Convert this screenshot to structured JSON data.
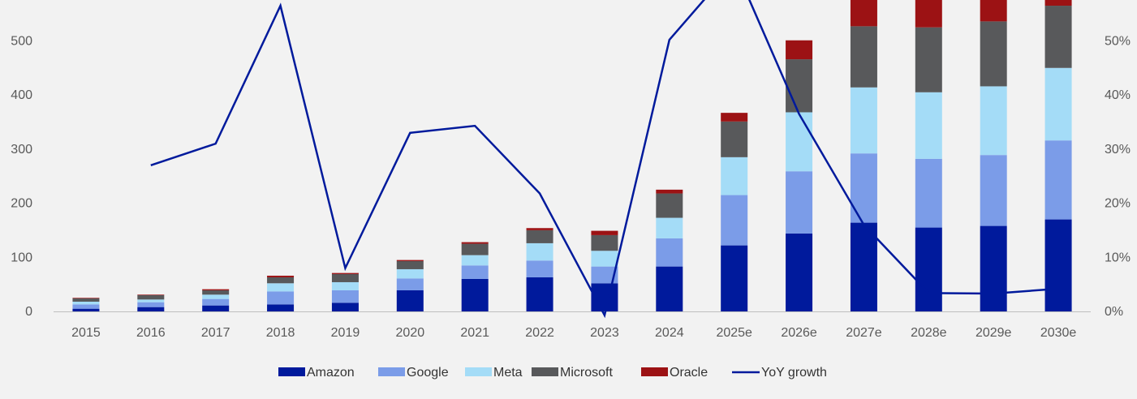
{
  "chart_data": {
    "type": "bar",
    "subtype": "stacked-bar-with-line",
    "categories": [
      "2015",
      "2016",
      "2017",
      "2018",
      "2019",
      "2020",
      "2021",
      "2022",
      "2023",
      "2024",
      "2025e",
      "2026e",
      "2027e",
      "2028e",
      "2029e",
      "2030e"
    ],
    "series": [
      {
        "name": "Amazon",
        "color": "#001a9c",
        "values": [
          5,
          8,
          11,
          13,
          16,
          39,
          60,
          63,
          52,
          83,
          122,
          144,
          164,
          155,
          158,
          170
        ]
      },
      {
        "name": "Google",
        "color": "#7b9ce8",
        "values": [
          8,
          9,
          12,
          24,
          23,
          22,
          25,
          31,
          31,
          52,
          93,
          115,
          128,
          127,
          131,
          146
        ]
      },
      {
        "name": "Meta",
        "color": "#a4dcf7",
        "values": [
          5,
          5,
          8,
          15,
          15,
          17,
          19,
          32,
          29,
          38,
          70,
          109,
          122,
          123,
          127,
          134
        ]
      },
      {
        "name": "Microsoft",
        "color": "#58595b",
        "values": [
          6,
          8,
          8,
          11,
          15,
          15,
          21,
          24,
          29,
          45,
          66,
          98,
          113,
          120,
          120,
          115
        ]
      },
      {
        "name": "Oracle",
        "color": "#9c1214",
        "values": [
          1,
          1,
          2,
          3,
          2,
          2,
          3,
          4,
          8,
          7,
          16,
          35,
          52,
          55,
          47,
          40
        ]
      }
    ],
    "line_series": {
      "name": "YoY growth",
      "color": "#001a9c",
      "axis": "right",
      "values": [
        null,
        27,
        31,
        56.5,
        8,
        33,
        34.3,
        21.8,
        -0.7,
        50.2,
        64,
        36.5,
        16,
        3.4,
        3.3,
        4.2
      ]
    },
    "y_left": {
      "ticks": [
        0,
        100,
        200,
        300,
        400,
        500
      ],
      "range": [
        0,
        560
      ]
    },
    "y_right": {
      "ticks": [
        "0%",
        "10%",
        "20%",
        "30%",
        "40%",
        "50%"
      ],
      "tick_values": [
        0,
        10,
        20,
        30,
        40,
        50
      ],
      "range": [
        0,
        56
      ]
    },
    "legend_position": "bottom-center",
    "grid": false,
    "title": "",
    "xlabel": "",
    "ylabel": ""
  }
}
